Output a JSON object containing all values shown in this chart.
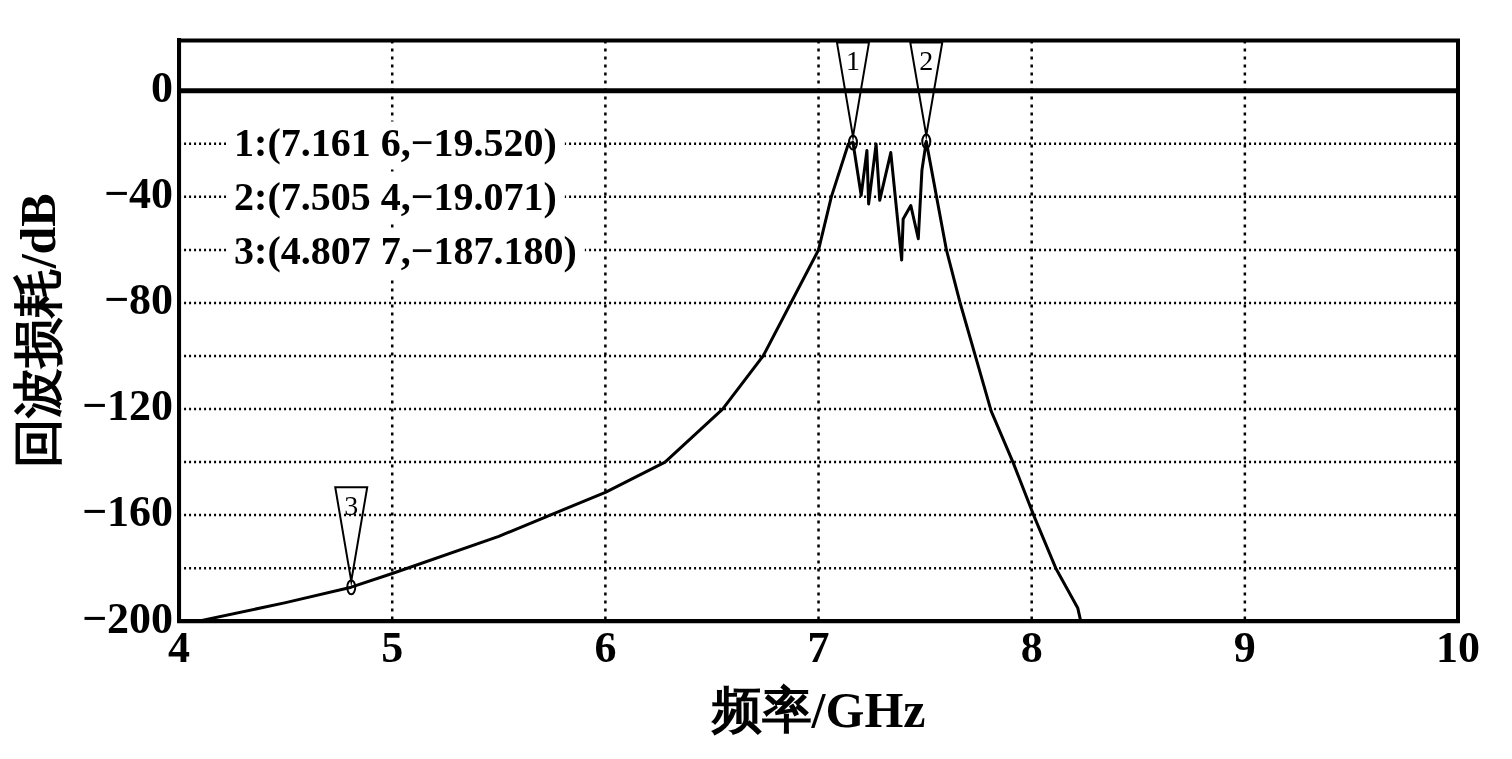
{
  "chart_data": {
    "type": "line",
    "xlabel": "频率/GHz",
    "ylabel": "回波损耗/dB",
    "xlim": [
      4,
      10
    ],
    "xticks": [
      4,
      5,
      6,
      7,
      8,
      9,
      10
    ],
    "ylim": [
      -200,
      19
    ],
    "yticks": [
      0,
      {
        "value": -20,
        "label": null
      },
      -40,
      {
        "value": -60,
        "label": null
      },
      -80,
      {
        "value": -100,
        "label": null
      },
      -120,
      {
        "value": -140,
        "label": null
      },
      -160,
      {
        "value": -180,
        "label": null
      },
      -200
    ],
    "grid": true,
    "legend": false,
    "marker": "none",
    "line_style": "solid",
    "ref_lines": [
      {
        "axis": "y",
        "value": 0,
        "color": "#000000",
        "line_style": "solid"
      }
    ],
    "series": [
      {
        "color": "#000000",
        "x": [
          4.09,
          4.5,
          4.8077,
          5,
          5.5,
          6,
          6.28,
          6.55,
          6.74,
          6.87,
          7.0,
          7.06,
          7.14,
          7.1616,
          7.2,
          7.227,
          7.235,
          7.27,
          7.287,
          7.339,
          7.39,
          7.397,
          7.433,
          7.468,
          7.485,
          7.5054,
          7.6,
          7.666,
          7.738,
          7.81,
          7.913,
          8.01,
          8.113,
          8.216,
          8.23
        ],
        "values": [
          -200,
          -193,
          -187.18,
          -182,
          -168,
          -151.4,
          -140,
          -120,
          -100,
          -80,
          -60,
          -40,
          -20,
          -19.52,
          -39.4,
          -22.5,
          -42.7,
          -20.1,
          -41.3,
          -23.3,
          -63.8,
          -48.3,
          -43.3,
          -55.8,
          -30,
          -19.071,
          -60,
          -80.5,
          -100.6,
          -120.8,
          -140.2,
          -160.2,
          -180,
          -195,
          -200
        ]
      }
    ],
    "annotations": [
      "1:(7.161 6,−19.520)",
      "2:(7.505 4,−19.071)",
      "3:(4.807 7,−187.180)",
      {
        "text": "1",
        "x": 7.1616,
        "y": -19.52
      },
      {
        "text": "2",
        "x": 7.5054,
        "y": -19.071
      },
      {
        "text": "3",
        "x": 4.8077,
        "y": -187.18
      }
    ]
  }
}
